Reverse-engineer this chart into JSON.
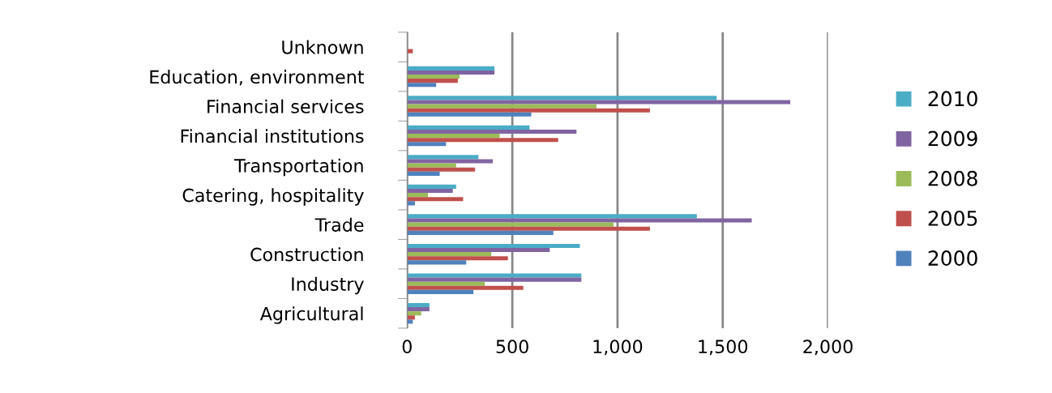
{
  "chart_data": {
    "type": "bar",
    "orientation": "horizontal",
    "categories": [
      "Unknown",
      "Education, environment",
      "Financial services",
      "Financial institutions",
      "Transportation",
      "Catering, hospitality",
      "Trade",
      "Construction",
      "Industry",
      "Agricultural"
    ],
    "series": [
      {
        "name": "2010",
        "color": "#4bacc6",
        "values": [
          0,
          415,
          1471,
          582,
          339,
          233,
          1377,
          821,
          828,
          106
        ]
      },
      {
        "name": "2009",
        "color": "#8064a2",
        "values": [
          0,
          415,
          1821,
          805,
          407,
          217,
          1638,
          678,
          828,
          106
        ]
      },
      {
        "name": "2008",
        "color": "#9bbb59",
        "values": [
          0,
          249,
          900,
          440,
          233,
          99,
          981,
          400,
          369,
          67
        ]
      },
      {
        "name": "2005",
        "color": "#c0504d",
        "values": [
          27,
          241,
          1154,
          718,
          323,
          266,
          1154,
          479,
          552,
          37
        ]
      },
      {
        "name": "2000",
        "color": "#4f81bd",
        "values": [
          null,
          138,
          590,
          185,
          155,
          37,
          695,
          281,
          315,
          27
        ]
      }
    ],
    "xlim": [
      0,
      2000
    ],
    "xticks": [
      0,
      500,
      {
        "value": 1000,
        "label": "1,000"
      },
      {
        "value": 1500,
        "label": "1,500"
      },
      {
        "value": 2000,
        "label": "2,000"
      }
    ],
    "grid": "x",
    "legend": "right"
  }
}
